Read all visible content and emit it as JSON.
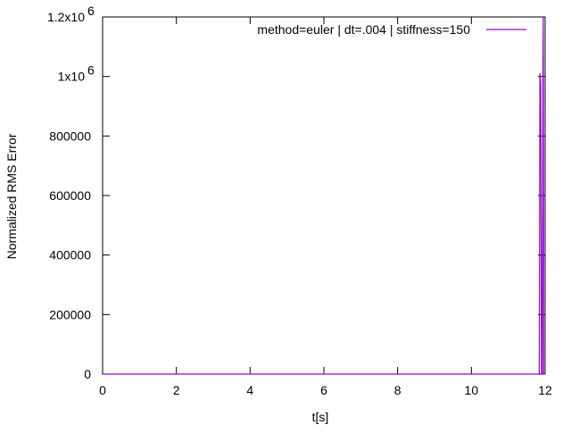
{
  "chart_data": {
    "type": "line",
    "title": "",
    "xlabel": "t[s]",
    "ylabel": "Normalized RMS Error",
    "xlim": [
      0,
      12
    ],
    "ylim": [
      0,
      1200000
    ],
    "grid": false,
    "legend_position": "top-right",
    "x_ticks": [
      {
        "value": 0,
        "label": "0"
      },
      {
        "value": 2,
        "label": "2"
      },
      {
        "value": 4,
        "label": "4"
      },
      {
        "value": 6,
        "label": "6"
      },
      {
        "value": 8,
        "label": "8"
      },
      {
        "value": 10,
        "label": "10"
      },
      {
        "value": 12,
        "label": "12"
      }
    ],
    "y_ticks": [
      {
        "value": 0,
        "label": "0"
      },
      {
        "value": 200000,
        "label": "200000"
      },
      {
        "value": 400000,
        "label": "400000"
      },
      {
        "value": 600000,
        "label": "600000"
      },
      {
        "value": 800000,
        "label": "800000"
      },
      {
        "value": 1000000,
        "label": "1x10",
        "exp": "6"
      },
      {
        "value": 1200000,
        "label": "1.2x10",
        "exp": "6"
      }
    ],
    "series": [
      {
        "name": "method=euler | dt=.004 | stiffness=150",
        "color": "#9400d3",
        "x": [
          0,
          11.84,
          11.86,
          11.88,
          11.9,
          11.92,
          11.94,
          11.95,
          11.96,
          11.98,
          12.0
        ],
        "y": [
          0,
          0,
          1010000,
          980000,
          0,
          0,
          1000000,
          1200000,
          0,
          0,
          0
        ]
      }
    ]
  }
}
